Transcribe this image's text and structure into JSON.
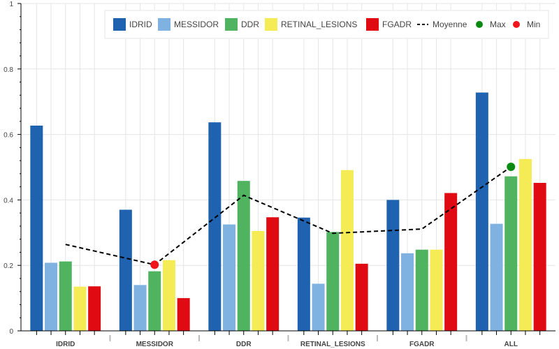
{
  "chart_data": {
    "type": "bar",
    "categories": [
      "IDRID",
      "MESSIDOR",
      "DDR",
      "RETINAL_LESIONS",
      "FGADR",
      "ALL"
    ],
    "series": [
      {
        "name": "IDRID",
        "color": "#1f63b0",
        "values": [
          0.627,
          0.37,
          0.637,
          0.346,
          0.4,
          0.728
        ]
      },
      {
        "name": "MESSIDOR",
        "color": "#7fb2e0",
        "values": [
          0.208,
          0.14,
          0.325,
          0.144,
          0.237,
          0.327
        ]
      },
      {
        "name": "DDR",
        "color": "#4fb35f",
        "values": [
          0.212,
          0.182,
          0.458,
          0.302,
          0.248,
          0.472
        ]
      },
      {
        "name": "RETINAL_LESIONS",
        "color": "#f5eb55",
        "values": [
          0.135,
          0.216,
          0.305,
          0.491,
          0.248,
          0.525
        ]
      },
      {
        "name": "FGADR",
        "color": "#e00b12",
        "values": [
          0.136,
          0.1,
          0.347,
          0.205,
          0.421,
          0.452
        ]
      }
    ],
    "moyenne": {
      "name": "Moyenne",
      "values": [
        0.264,
        0.202,
        0.414,
        0.298,
        0.311,
        0.501
      ]
    },
    "max_point": {
      "name": "Max",
      "category": "ALL",
      "value": 0.501,
      "color": "#0a8a10"
    },
    "min_point": {
      "name": "Min",
      "category": "MESSIDOR",
      "value": 0.202,
      "color": "#f0141b"
    },
    "ylim": [
      0,
      1
    ],
    "yticks": [
      "0",
      "0.2",
      "0.4",
      "0.6",
      "0.8",
      "1"
    ],
    "ytick_values": [
      0,
      0.2,
      0.4,
      0.6,
      0.8,
      1
    ],
    "title": "",
    "xlabel": "",
    "ylabel": "",
    "grid": true,
    "legend_position": "top-right",
    "legend_orientation": "horizontal"
  }
}
